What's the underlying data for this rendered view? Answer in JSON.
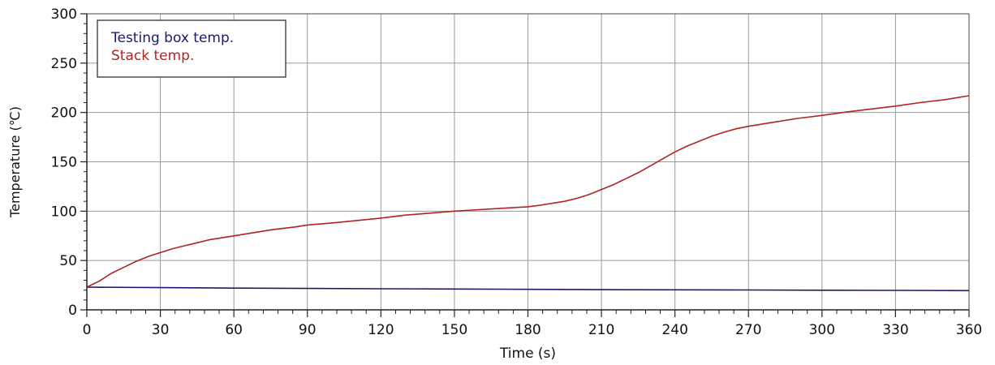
{
  "chart_data": {
    "type": "line",
    "xlabel": "Time (s)",
    "ylabel": "Temperature (℃)",
    "xlim": [
      0,
      360
    ],
    "ylim": [
      0,
      300
    ],
    "xticks": [
      0,
      30,
      60,
      90,
      120,
      150,
      180,
      210,
      240,
      270,
      300,
      330,
      360
    ],
    "yticks": [
      0,
      50,
      100,
      150,
      200,
      250,
      300
    ],
    "grid": true,
    "legend_position": "top-left",
    "series": [
      {
        "name": "Testing box temp.",
        "color": "#1a1a6e",
        "x": [
          0,
          30,
          60,
          90,
          120,
          150,
          180,
          210,
          240,
          270,
          300,
          330,
          360
        ],
        "y": [
          23,
          22.5,
          22,
          21.7,
          21.4,
          21.1,
          20.8,
          20.5,
          20.3,
          20.1,
          19.9,
          19.7,
          19.5
        ]
      },
      {
        "name": "Stack temp.",
        "color": "#b22222",
        "x": [
          0,
          5,
          10,
          15,
          20,
          25,
          30,
          35,
          40,
          45,
          50,
          55,
          60,
          65,
          70,
          75,
          80,
          85,
          90,
          100,
          110,
          120,
          130,
          140,
          150,
          160,
          170,
          180,
          185,
          190,
          195,
          200,
          205,
          210,
          215,
          220,
          225,
          230,
          235,
          240,
          245,
          250,
          255,
          260,
          265,
          270,
          280,
          290,
          300,
          310,
          320,
          330,
          340,
          350,
          360
        ],
        "y": [
          23,
          29,
          37,
          43,
          49,
          54,
          58,
          62,
          65,
          68,
          71,
          73,
          75,
          77,
          79,
          81,
          82.5,
          84,
          86,
          88,
          90.5,
          93,
          96,
          98,
          100,
          101.5,
          103,
          104.5,
          106,
          108,
          110,
          113,
          117,
          122,
          127,
          133,
          139,
          146,
          153,
          160,
          166,
          171,
          176,
          180,
          183.5,
          186,
          190,
          194,
          197,
          200.5,
          203.5,
          206.5,
          210,
          213,
          217
        ]
      }
    ]
  }
}
